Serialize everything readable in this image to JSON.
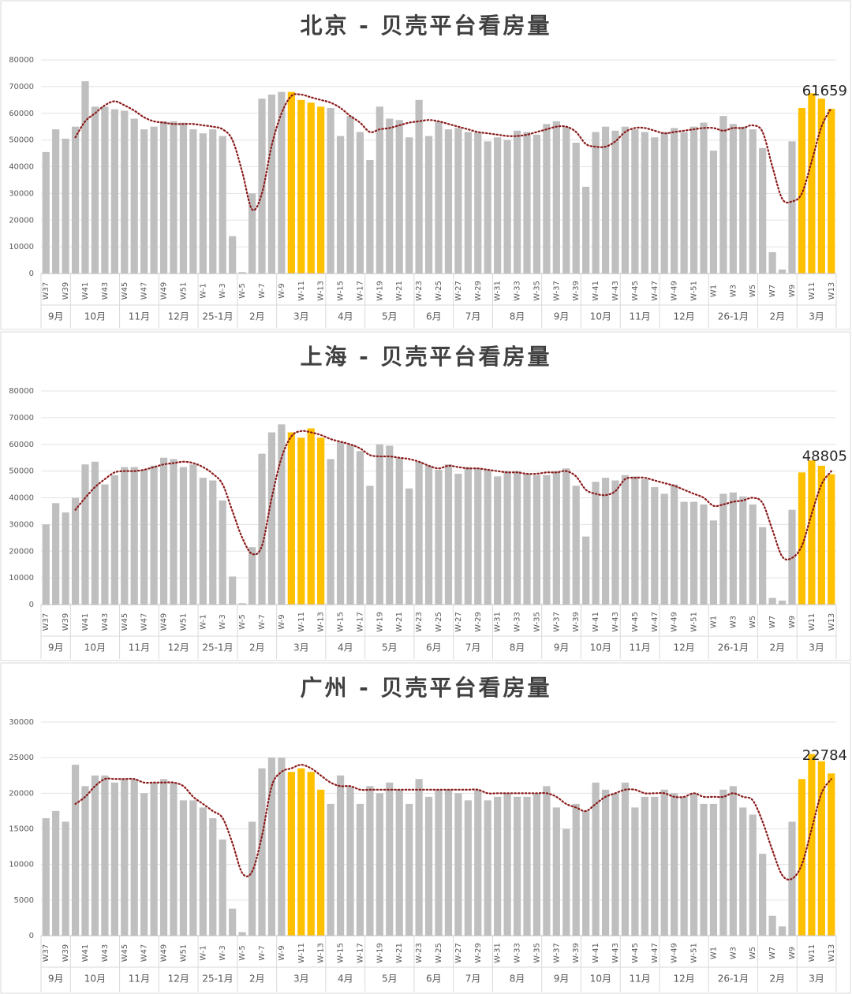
{
  "chart_data": [
    {
      "type": "bar",
      "title": "北京 - 贝壳平台看房量",
      "categories": [
        "W37",
        null,
        "W39",
        null,
        "W41",
        null,
        "W43",
        null,
        "W45",
        null,
        "W47",
        null,
        "W49",
        null,
        "W51",
        null,
        "W-1",
        null,
        "W-3",
        null,
        "W-5",
        null,
        "W-7",
        null,
        "W-9",
        null,
        "W-11",
        null,
        "W-13",
        null,
        "W-15",
        null,
        "W-17",
        null,
        "W-19",
        null,
        "W-21",
        null,
        "W-23",
        null,
        "W-25",
        null,
        "W-27",
        null,
        "W-29",
        null,
        "W-31",
        null,
        "W-33",
        null,
        "W-35",
        null,
        "W-37",
        null,
        "W-39",
        null,
        "W-41",
        null,
        "W-43",
        null,
        "W-45",
        null,
        "W-47",
        null,
        "W-49",
        null,
        "W-51",
        null,
        "W1",
        null,
        "W3",
        null,
        "W5",
        null,
        "W7",
        null,
        "W9",
        null,
        "W11",
        null,
        "W13"
      ],
      "months": [
        "9月",
        "10月",
        "11月",
        "12月",
        "25-1月",
        "2月",
        "3月",
        "4月",
        "5月",
        "6月",
        "7月",
        "8月",
        "9月",
        "10月",
        "11月",
        "12月",
        "26-1月",
        "2月",
        "3月"
      ],
      "values": [
        45500,
        54000,
        50500,
        55000,
        72000,
        62500,
        62500,
        61500,
        61000,
        58000,
        54000,
        55000,
        57000,
        57000,
        56500,
        54000,
        52500,
        54000,
        51500,
        14000,
        500,
        30000,
        65500,
        67000,
        68000,
        68000,
        65000,
        64000,
        62500,
        62000,
        51500,
        59000,
        53000,
        42500,
        62500,
        58000,
        57500,
        51000,
        65000,
        51500,
        57000,
        54000,
        54500,
        53000,
        53000,
        49500,
        51000,
        50000,
        53500,
        53000,
        52000,
        56000,
        57000,
        55000,
        49000,
        32500,
        53000,
        55000,
        53500,
        55000,
        54000,
        53000,
        51000,
        53000,
        54500,
        53000,
        55000,
        56500,
        46000,
        59000,
        56000,
        55000,
        54000,
        47000,
        8000,
        1500,
        49500,
        62000,
        67500,
        65500,
        61659
      ],
      "colors": [
        "#bfbfbf",
        "#bfbfbf",
        "#bfbfbf",
        "#bfbfbf",
        "#bfbfbf",
        "#bfbfbf",
        "#bfbfbf",
        "#bfbfbf",
        "#bfbfbf",
        "#bfbfbf",
        "#bfbfbf",
        "#bfbfbf",
        "#bfbfbf",
        "#bfbfbf",
        "#bfbfbf",
        "#bfbfbf",
        "#bfbfbf",
        "#bfbfbf",
        "#bfbfbf",
        "#bfbfbf",
        "#bfbfbf",
        "#bfbfbf",
        "#bfbfbf",
        "#bfbfbf",
        "#bfbfbf",
        "#ffc000",
        "#ffc000",
        "#ffc000",
        "#ffc000",
        "#bfbfbf",
        "#bfbfbf",
        "#bfbfbf",
        "#bfbfbf",
        "#bfbfbf",
        "#bfbfbf",
        "#bfbfbf",
        "#bfbfbf",
        "#bfbfbf",
        "#bfbfbf",
        "#bfbfbf",
        "#bfbfbf",
        "#bfbfbf",
        "#bfbfbf",
        "#bfbfbf",
        "#bfbfbf",
        "#bfbfbf",
        "#bfbfbf",
        "#bfbfbf",
        "#bfbfbf",
        "#bfbfbf",
        "#bfbfbf",
        "#bfbfbf",
        "#bfbfbf",
        "#bfbfbf",
        "#bfbfbf",
        "#bfbfbf",
        "#bfbfbf",
        "#bfbfbf",
        "#bfbfbf",
        "#bfbfbf",
        "#bfbfbf",
        "#bfbfbf",
        "#bfbfbf",
        "#bfbfbf",
        "#bfbfbf",
        "#bfbfbf",
        "#bfbfbf",
        "#bfbfbf",
        "#bfbfbf",
        "#bfbfbf",
        "#bfbfbf",
        "#bfbfbf",
        "#bfbfbf",
        "#bfbfbf",
        "#bfbfbf",
        "#bfbfbf",
        "#bfbfbf",
        "#ffc000",
        "#ffc000",
        "#ffc000",
        "#ffc000"
      ],
      "trend": [
        null,
        null,
        null,
        51000,
        57000,
        60000,
        63000,
        64500,
        63000,
        61000,
        58500,
        57000,
        56500,
        56000,
        56000,
        56000,
        55500,
        55000,
        54000,
        50000,
        38000,
        24000,
        30000,
        48000,
        60000,
        66500,
        67000,
        66000,
        65000,
        64000,
        62000,
        59000,
        56500,
        53000,
        54000,
        54500,
        55500,
        56500,
        57000,
        57500,
        57000,
        56000,
        55000,
        54000,
        53000,
        52500,
        52000,
        51500,
        51500,
        52000,
        53000,
        54000,
        55000,
        55000,
        53000,
        48500,
        47500,
        47500,
        49500,
        53000,
        54500,
        54500,
        53500,
        52500,
        53000,
        53500,
        54000,
        54500,
        54500,
        53500,
        54500,
        54500,
        55500,
        53000,
        40000,
        28000,
        27000,
        30000,
        42000,
        55000,
        62000
      ],
      "trend_color": "#8b1a1a",
      "label_last": true,
      "ylim": [
        0,
        80000
      ],
      "yticks": [
        0,
        10000,
        20000,
        30000,
        40000,
        50000,
        60000,
        70000,
        80000
      ],
      "grid": true
    },
    {
      "type": "bar",
      "title": "上海 - 贝壳平台看房量",
      "categories": [
        "W37",
        null,
        "W39",
        null,
        "W41",
        null,
        "W43",
        null,
        "W45",
        null,
        "W47",
        null,
        "W49",
        null,
        "W51",
        null,
        "W-1",
        null,
        "W-3",
        null,
        "W-5",
        null,
        "W-7",
        null,
        "W-9",
        null,
        "W-11",
        null,
        "W-13",
        null,
        "W-15",
        null,
        "W-17",
        null,
        "W-19",
        null,
        "W-21",
        null,
        "W-23",
        null,
        "W-25",
        null,
        "W-27",
        null,
        "W-29",
        null,
        "W-31",
        null,
        "W-33",
        null,
        "W-35",
        null,
        "W-37",
        null,
        "W-39",
        null,
        "W-41",
        null,
        "W-43",
        null,
        "W-45",
        null,
        "W-47",
        null,
        "W-49",
        null,
        "W-51",
        null,
        "W1",
        null,
        "W3",
        null,
        "W5",
        null,
        "W7",
        null,
        "W9",
        null,
        "W11",
        null,
        "W13"
      ],
      "months": [
        "9月",
        "10月",
        "11月",
        "12月",
        "25-1月",
        "2月",
        "3月",
        "4月",
        "5月",
        "6月",
        "7月",
        "8月",
        "9月",
        "10月",
        "11月",
        "12月",
        "26-1月",
        "2月",
        "3月"
      ],
      "values": [
        30000,
        38000,
        34500,
        40000,
        52500,
        53500,
        45000,
        48500,
        51500,
        51500,
        50500,
        52000,
        55000,
        54500,
        51500,
        52500,
        47500,
        46500,
        39000,
        10500,
        500,
        21500,
        56500,
        64500,
        67500,
        64500,
        62500,
        66000,
        62500,
        54500,
        61000,
        60000,
        57500,
        44500,
        60000,
        59500,
        55000,
        43500,
        53500,
        52000,
        50500,
        52500,
        49000,
        51500,
        51000,
        50500,
        48000,
        50000,
        50000,
        49000,
        48500,
        48500,
        50000,
        51000,
        44500,
        25500,
        46000,
        47500,
        46500,
        48500,
        48000,
        47000,
        44000,
        41500,
        45000,
        38500,
        38500,
        37500,
        31500,
        41500,
        42000,
        40500,
        37500,
        29000,
        2500,
        1500,
        35500,
        49500,
        54000,
        52000,
        48805
      ],
      "colors": [
        "#bfbfbf",
        "#bfbfbf",
        "#bfbfbf",
        "#bfbfbf",
        "#bfbfbf",
        "#bfbfbf",
        "#bfbfbf",
        "#bfbfbf",
        "#bfbfbf",
        "#bfbfbf",
        "#bfbfbf",
        "#bfbfbf",
        "#bfbfbf",
        "#bfbfbf",
        "#bfbfbf",
        "#bfbfbf",
        "#bfbfbf",
        "#bfbfbf",
        "#bfbfbf",
        "#bfbfbf",
        "#bfbfbf",
        "#bfbfbf",
        "#bfbfbf",
        "#bfbfbf",
        "#bfbfbf",
        "#ffc000",
        "#ffc000",
        "#ffc000",
        "#ffc000",
        "#bfbfbf",
        "#bfbfbf",
        "#bfbfbf",
        "#bfbfbf",
        "#bfbfbf",
        "#bfbfbf",
        "#bfbfbf",
        "#bfbfbf",
        "#bfbfbf",
        "#bfbfbf",
        "#bfbfbf",
        "#bfbfbf",
        "#bfbfbf",
        "#bfbfbf",
        "#bfbfbf",
        "#bfbfbf",
        "#bfbfbf",
        "#bfbfbf",
        "#bfbfbf",
        "#bfbfbf",
        "#bfbfbf",
        "#bfbfbf",
        "#bfbfbf",
        "#bfbfbf",
        "#bfbfbf",
        "#bfbfbf",
        "#bfbfbf",
        "#bfbfbf",
        "#bfbfbf",
        "#bfbfbf",
        "#bfbfbf",
        "#bfbfbf",
        "#bfbfbf",
        "#bfbfbf",
        "#bfbfbf",
        "#bfbfbf",
        "#bfbfbf",
        "#bfbfbf",
        "#bfbfbf",
        "#bfbfbf",
        "#bfbfbf",
        "#bfbfbf",
        "#bfbfbf",
        "#bfbfbf",
        "#bfbfbf",
        "#bfbfbf",
        "#bfbfbf",
        "#bfbfbf",
        "#ffc000",
        "#ffc000",
        "#ffc000",
        "#ffc000"
      ],
      "trend": [
        null,
        null,
        null,
        35500,
        40000,
        44000,
        47000,
        49500,
        50000,
        50000,
        50500,
        51500,
        52500,
        53000,
        53500,
        53000,
        51500,
        49000,
        45000,
        35000,
        25000,
        19000,
        22000,
        40000,
        55000,
        63000,
        65000,
        64500,
        63500,
        62000,
        61000,
        60000,
        58500,
        56000,
        55500,
        55500,
        55000,
        54500,
        53500,
        52000,
        51000,
        52000,
        51500,
        51000,
        51000,
        50500,
        50000,
        49500,
        49500,
        49000,
        49000,
        49500,
        49500,
        50000,
        48000,
        43000,
        41500,
        41000,
        42500,
        47000,
        47500,
        47500,
        46500,
        45500,
        44500,
        43000,
        41500,
        40000,
        37000,
        37500,
        38500,
        39000,
        40000,
        38000,
        28000,
        18000,
        17500,
        22000,
        34000,
        45000,
        50000
      ],
      "trend_color": "#8b1a1a",
      "label_last": true,
      "ylim": [
        0,
        80000
      ],
      "yticks": [
        0,
        10000,
        20000,
        30000,
        40000,
        50000,
        60000,
        70000,
        80000
      ],
      "grid": true
    },
    {
      "type": "bar",
      "title": "广州 - 贝壳平台看房量",
      "categories": [
        "W37",
        null,
        "W39",
        null,
        "W41",
        null,
        "W43",
        null,
        "W45",
        null,
        "W47",
        null,
        "W49",
        null,
        "W51",
        null,
        "W-1",
        null,
        "W-3",
        null,
        "W-5",
        null,
        "W-7",
        null,
        "W-9",
        null,
        "W-11",
        null,
        "W-13",
        null,
        "W-15",
        null,
        "W-17",
        null,
        "W-19",
        null,
        "W-21",
        null,
        "W-23",
        null,
        "W-25",
        null,
        "W-27",
        null,
        "W-29",
        null,
        "W-31",
        null,
        "W-33",
        null,
        "W-35",
        null,
        "W-37",
        null,
        "W-39",
        null,
        "W-41",
        null,
        "W-43",
        null,
        "W-45",
        null,
        "W-47",
        null,
        "W-49",
        null,
        "W-51",
        null,
        "W1",
        null,
        "W3",
        null,
        "W5",
        null,
        "W7",
        null,
        "W9",
        null,
        "W11",
        null,
        "W13"
      ],
      "months": [
        "9月",
        "10月",
        "11月",
        "12月",
        "25-1月",
        "2月",
        "3月",
        "4月",
        "5月",
        "6月",
        "7月",
        "8月",
        "9月",
        "10月",
        "11月",
        "12月",
        "26-1月",
        "2月",
        "3月"
      ],
      "values": [
        16500,
        17500,
        16000,
        24000,
        21000,
        22500,
        22500,
        21500,
        22000,
        22000,
        20000,
        21500,
        22000,
        21500,
        19000,
        19000,
        18000,
        16500,
        13500,
        3800,
        500,
        16000,
        23500,
        25000,
        25000,
        23000,
        23500,
        23000,
        20500,
        18500,
        22500,
        21000,
        18500,
        21000,
        20000,
        21500,
        20500,
        18500,
        22000,
        19500,
        20500,
        20500,
        20000,
        19000,
        20500,
        19000,
        19500,
        20000,
        19500,
        19500,
        20000,
        21000,
        18000,
        15000,
        18500,
        17500,
        21500,
        20500,
        20000,
        21500,
        18000,
        19500,
        19500,
        20500,
        20000,
        19500,
        20000,
        18500,
        18500,
        20500,
        21000,
        18000,
        17000,
        11500,
        2800,
        1300,
        16000,
        22000,
        25500,
        24500,
        22784
      ],
      "colors": [
        "#bfbfbf",
        "#bfbfbf",
        "#bfbfbf",
        "#bfbfbf",
        "#bfbfbf",
        "#bfbfbf",
        "#bfbfbf",
        "#bfbfbf",
        "#bfbfbf",
        "#bfbfbf",
        "#bfbfbf",
        "#bfbfbf",
        "#bfbfbf",
        "#bfbfbf",
        "#bfbfbf",
        "#bfbfbf",
        "#bfbfbf",
        "#bfbfbf",
        "#bfbfbf",
        "#bfbfbf",
        "#bfbfbf",
        "#bfbfbf",
        "#bfbfbf",
        "#bfbfbf",
        "#bfbfbf",
        "#ffc000",
        "#ffc000",
        "#ffc000",
        "#ffc000",
        "#bfbfbf",
        "#bfbfbf",
        "#bfbfbf",
        "#bfbfbf",
        "#bfbfbf",
        "#bfbfbf",
        "#bfbfbf",
        "#bfbfbf",
        "#bfbfbf",
        "#bfbfbf",
        "#bfbfbf",
        "#bfbfbf",
        "#bfbfbf",
        "#bfbfbf",
        "#bfbfbf",
        "#bfbfbf",
        "#bfbfbf",
        "#bfbfbf",
        "#bfbfbf",
        "#bfbfbf",
        "#bfbfbf",
        "#bfbfbf",
        "#bfbfbf",
        "#bfbfbf",
        "#bfbfbf",
        "#bfbfbf",
        "#bfbfbf",
        "#bfbfbf",
        "#bfbfbf",
        "#bfbfbf",
        "#bfbfbf",
        "#bfbfbf",
        "#bfbfbf",
        "#bfbfbf",
        "#bfbfbf",
        "#bfbfbf",
        "#bfbfbf",
        "#bfbfbf",
        "#bfbfbf",
        "#bfbfbf",
        "#bfbfbf",
        "#bfbfbf",
        "#bfbfbf",
        "#bfbfbf",
        "#bfbfbf",
        "#bfbfbf",
        "#bfbfbf",
        "#bfbfbf",
        "#ffc000",
        "#ffc000",
        "#ffc000",
        "#ffc000"
      ],
      "trend": [
        null,
        null,
        null,
        18500,
        19500,
        21000,
        22000,
        22000,
        22000,
        22000,
        21500,
        21500,
        21500,
        21500,
        21000,
        19500,
        18500,
        17500,
        16500,
        13000,
        8800,
        9000,
        14000,
        21000,
        23000,
        23500,
        24000,
        23500,
        22500,
        21500,
        21000,
        21000,
        20500,
        20500,
        20500,
        20500,
        20500,
        20500,
        20500,
        20500,
        20500,
        20500,
        20500,
        20500,
        20500,
        20000,
        20000,
        20000,
        20000,
        20000,
        20000,
        20000,
        19500,
        18500,
        18000,
        17500,
        18500,
        19500,
        20000,
        20500,
        20500,
        20000,
        20000,
        20000,
        19500,
        19500,
        20000,
        19500,
        19500,
        19500,
        20000,
        19500,
        19000,
        16000,
        12000,
        8500,
        8000,
        10000,
        15000,
        20000,
        22000
      ],
      "trend_color": "#8b1a1a",
      "label_last": true,
      "ylim": [
        0,
        30000
      ],
      "yticks": [
        0,
        5000,
        10000,
        15000,
        20000,
        25000,
        30000
      ],
      "grid": true
    }
  ]
}
